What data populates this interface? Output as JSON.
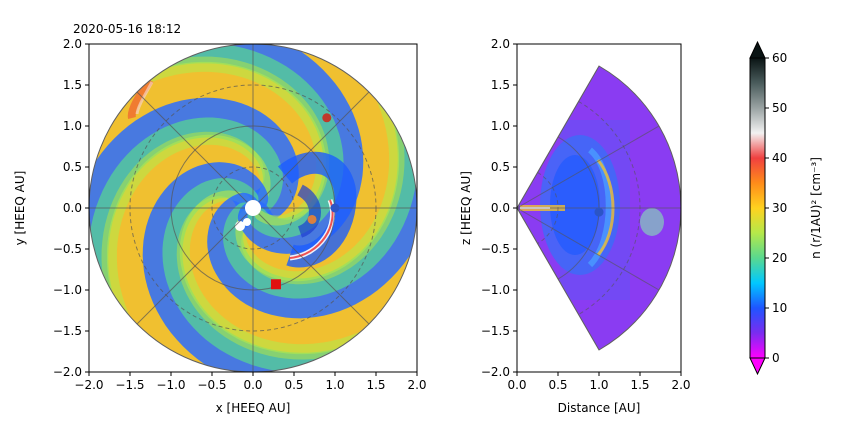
{
  "chart_data": [
    {
      "type": "heatmap",
      "title": "2020-05-16 18:12",
      "xlabel": "x [HEEQ AU]",
      "ylabel": "y [HEEQ AU]",
      "xlim": [
        -2.0,
        2.0
      ],
      "ylim": [
        -2.0,
        2.0
      ],
      "xticks": [
        -2.0,
        -1.5,
        -1.0,
        -0.5,
        0.0,
        0.5,
        1.0,
        1.5,
        2.0
      ],
      "yticks": [
        -2.0,
        -1.5,
        -1.0,
        -0.5,
        0.0,
        0.5,
        1.0,
        1.5,
        2.0
      ],
      "xticklabels": [
        "−2.0",
        "−1.5",
        "−1.0",
        "−0.5",
        "0.0",
        "0.5",
        "1.0",
        "1.5",
        "2.0"
      ],
      "yticklabels": [
        "−2.0",
        "−1.5",
        "−1.0",
        "−0.5",
        "0.0",
        "0.5",
        "1.0",
        "1.5",
        "2.0"
      ],
      "domain_radius": 2.0,
      "markers": [
        {
          "x": 0.0,
          "y": 0.0,
          "shape": "circle",
          "color": "#ffffff"
        },
        {
          "x": 1.0,
          "y": 0.0,
          "shape": "circle",
          "color": "#2b55c7"
        },
        {
          "x": 0.9,
          "y": 1.1,
          "shape": "circle",
          "color": "#c0392b"
        },
        {
          "x": 0.72,
          "y": -0.14,
          "shape": "circle",
          "color": "#d98040"
        },
        {
          "x": 0.28,
          "y": -0.93,
          "shape": "square",
          "color": "#e01010"
        }
      ]
    },
    {
      "type": "heatmap",
      "xlabel": "Distance [AU]",
      "ylabel": "z [HEEQ AU]",
      "xlim": [
        0.0,
        2.0
      ],
      "ylim": [
        -2.0,
        2.0
      ],
      "xticks": [
        0.0,
        0.5,
        1.0,
        1.5,
        2.0
      ],
      "yticks": [
        -2.0,
        -1.5,
        -1.0,
        -0.5,
        0.0,
        0.5,
        1.0,
        1.5,
        2.0
      ],
      "xticklabels": [
        "0.0",
        "0.5",
        "1.0",
        "1.5",
        "2.0"
      ],
      "yticklabels": [
        "−2.0",
        "−1.5",
        "−1.0",
        "−0.5",
        "0.0",
        "0.5",
        "1.0",
        "1.5",
        "2.0"
      ],
      "wedge_half_angle_deg": 60,
      "markers": [
        {
          "x": 1.0,
          "y": -0.05,
          "shape": "circle",
          "color": "#2b55c7"
        }
      ]
    }
  ],
  "colorbar": {
    "label": "n (r/1AU)² [cm⁻³]",
    "range": [
      0,
      60
    ],
    "ticks": [
      0,
      10,
      20,
      30,
      40,
      50,
      60
    ],
    "colors": [
      "#ff00ff",
      "#7a2cf0",
      "#1f55ff",
      "#00c8ff",
      "#59d98f",
      "#b5e84a",
      "#ffd21f",
      "#ff8c1a",
      "#f04040",
      "#f2f2f2",
      "#9aa3a3",
      "#4a5c5c",
      "#0a1414"
    ]
  }
}
